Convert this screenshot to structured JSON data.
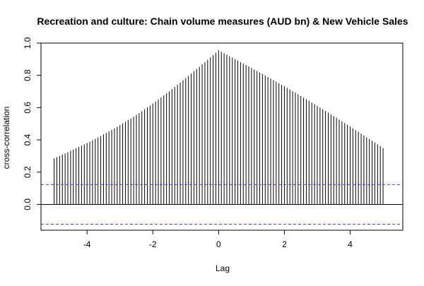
{
  "chart_data": {
    "type": "bar",
    "title": "Recreation and culture: Chain volume measures (AUD bn) & New Vehicle Sales",
    "xlabel": "Lag",
    "ylabel": "cross-correlation",
    "xlim": [
      -5.4,
      5.6
    ],
    "ylim": [
      -0.16,
      1.0
    ],
    "x_ticks": [
      -4,
      -2,
      0,
      2,
      4
    ],
    "y_ticks": [
      0.0,
      0.2,
      0.4,
      0.6,
      0.8,
      1.0
    ],
    "x_tick_labels": [
      "-4",
      "-2",
      "0",
      "2",
      "4"
    ],
    "y_tick_labels": [
      "0.0",
      "0.2",
      "0.4",
      "0.6",
      "0.8",
      "1.0"
    ],
    "lag_range": [
      -5,
      5
    ],
    "lag_step": 0.0833333,
    "peak": {
      "x": 0,
      "y": 0.955
    },
    "left_end": {
      "x": -5,
      "y": 0.285
    },
    "right_end": {
      "x": 5,
      "y": 0.35
    },
    "confidence_bounds": [
      0.123,
      -0.123
    ],
    "confidence_line_color": "#4040ff",
    "grid": false,
    "legend": "none"
  }
}
